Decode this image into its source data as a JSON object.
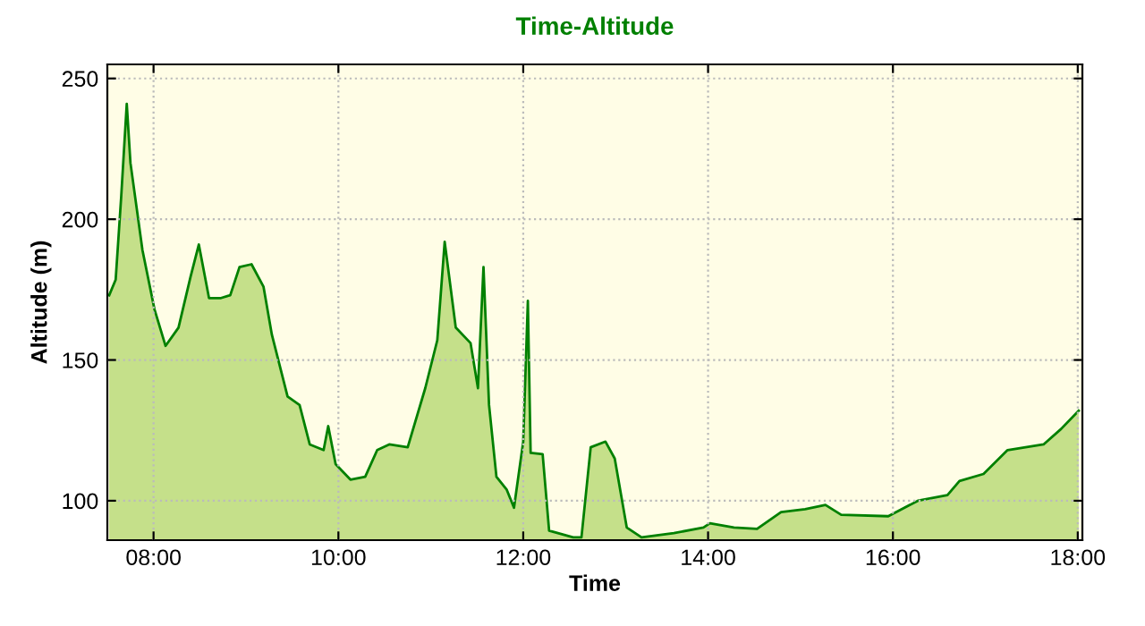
{
  "chart_data": {
    "type": "area",
    "title": "Time-Altitude",
    "xlabel": "Time",
    "ylabel": "Altitude (m)",
    "x": [
      7.52,
      7.59,
      7.65,
      7.71,
      7.75,
      7.88,
      8.01,
      8.13,
      8.27,
      8.4,
      8.49,
      8.6,
      8.73,
      8.83,
      8.93,
      9.06,
      9.19,
      9.28,
      9.45,
      9.58,
      9.69,
      9.84,
      9.89,
      9.97,
      10.13,
      10.29,
      10.42,
      10.55,
      10.75,
      10.94,
      11.07,
      11.15,
      11.27,
      11.43,
      11.51,
      11.57,
      11.63,
      11.71,
      11.82,
      11.9,
      12.0,
      12.05,
      12.08,
      12.21,
      12.28,
      12.54,
      12.63,
      12.73,
      12.89,
      12.99,
      13.12,
      13.28,
      13.63,
      13.95,
      14.02,
      14.28,
      14.53,
      14.79,
      15.05,
      15.27,
      15.44,
      15.95,
      16.27,
      16.59,
      16.72,
      16.98,
      17.24,
      17.63,
      17.82,
      18.01
    ],
    "series": [
      {
        "color": "#008000",
        "values": [
          173,
          178.5,
          208,
          241,
          220,
          189,
          168,
          155,
          161.5,
          179.5,
          191,
          172,
          172,
          173,
          183,
          184,
          176,
          159,
          137,
          134,
          120,
          118,
          126.5,
          113,
          107.5,
          108.5,
          118,
          120,
          119,
          140,
          157,
          192,
          161.5,
          156,
          140,
          183,
          134,
          108.5,
          104,
          97.5,
          121,
          171,
          117,
          116.5,
          89.4,
          87,
          87,
          119,
          121,
          115,
          90.5,
          87,
          88.5,
          90.5,
          92,
          90.5,
          90,
          96,
          97,
          98.5,
          95,
          94.5,
          100,
          102,
          107,
          109.5,
          118,
          120,
          125.5,
          132
        ]
      }
    ],
    "xlim": [
      7.5,
      18.05
    ],
    "ylim": [
      86,
      255
    ],
    "xticks": [
      {
        "value": 8,
        "label": "08:00"
      },
      {
        "value": 10,
        "label": "10:00"
      },
      {
        "value": 12,
        "label": "12:00"
      },
      {
        "value": 14,
        "label": "14:00"
      },
      {
        "value": 16,
        "label": "16:00"
      },
      {
        "value": 18,
        "label": "18:00"
      }
    ],
    "yticks": [
      100,
      150,
      200,
      250
    ],
    "grid": true
  }
}
